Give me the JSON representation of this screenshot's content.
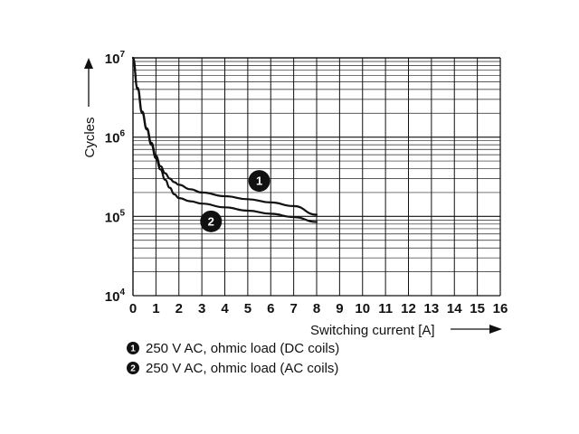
{
  "chart_data": {
    "type": "line",
    "xlabel": "Switching current [A]",
    "ylabel": "Cycles",
    "xlim": [
      0,
      16
    ],
    "ylim": [
      10000,
      10000000
    ],
    "y_scale": "log",
    "grid": true,
    "x_ticks": [
      "0",
      "1",
      "2",
      "3",
      "4",
      "5",
      "6",
      "7",
      "8",
      "9",
      "10",
      "11",
      "12",
      "13",
      "14",
      "15",
      "16"
    ],
    "y_ticks": [
      {
        "base": "10",
        "exp": "4",
        "value": 10000
      },
      {
        "base": "10",
        "exp": "5",
        "value": 100000
      },
      {
        "base": "10",
        "exp": "6",
        "value": 1000000
      },
      {
        "base": "10",
        "exp": "7",
        "value": 10000000
      }
    ],
    "series": [
      {
        "name": "250 V AC, ohmic load (DC coils)",
        "marker": "1",
        "color": "#111111",
        "x": [
          0,
          0.2,
          0.4,
          0.6,
          0.8,
          1.0,
          1.2,
          1.4,
          1.6,
          1.8,
          2.0,
          2.5,
          3,
          4,
          5,
          6,
          7,
          8
        ],
        "y": [
          10000000,
          4200000,
          2100000,
          1300000,
          850000,
          580000,
          430000,
          350000,
          300000,
          270000,
          250000,
          220000,
          200000,
          180000,
          165000,
          150000,
          135000,
          105000
        ]
      },
      {
        "name": "250 V AC, ohmic load (AC coils)",
        "marker": "2",
        "color": "#111111",
        "x": [
          0,
          0.2,
          0.4,
          0.6,
          0.8,
          1.0,
          1.2,
          1.4,
          1.6,
          1.8,
          2.0,
          2.5,
          3,
          4,
          5,
          6,
          7,
          8
        ],
        "y": [
          10000000,
          4000000,
          2000000,
          1250000,
          800000,
          540000,
          390000,
          290000,
          230000,
          190000,
          170000,
          155000,
          145000,
          130000,
          118000,
          108000,
          98000,
          85000
        ]
      }
    ]
  }
}
